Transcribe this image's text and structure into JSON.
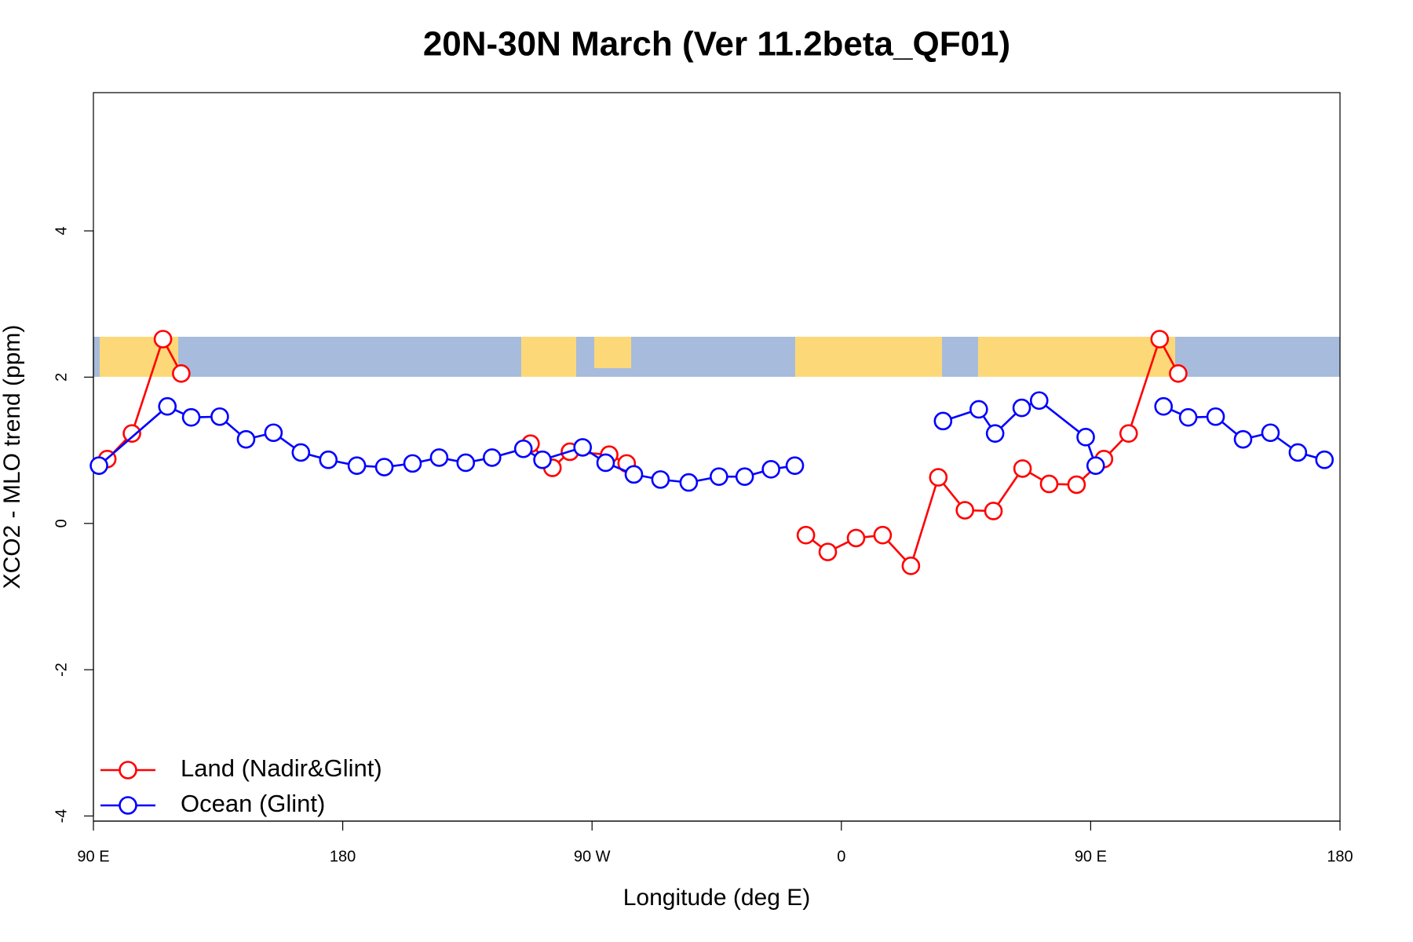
{
  "chart_data": {
    "type": "line",
    "title": "20N-30N March (Ver 11.2beta_QF01)",
    "x_label": "Longitude (deg E)",
    "y_label": "XCO2 - MLO trend (ppm)",
    "xlim": [
      90,
      540
    ],
    "xticks": [
      {
        "value": 90,
        "label": "90 E"
      },
      180,
      {
        "value": 270,
        "label": "90 W"
      },
      {
        "value": 360,
        "label": "0"
      },
      {
        "value": 450,
        "label": "90 E"
      },
      {
        "value": 540,
        "label": "180"
      }
    ],
    "ylim": [
      -4.07,
      5.89
    ],
    "yticks": [
      -4,
      -2,
      0,
      2,
      4
    ],
    "legend": "bottomleft",
    "series": [
      {
        "name": "Land (Nadir&Glint)",
        "color": "#ff0000",
        "x": [
          95,
          103.9,
          115.1,
          121.7,
          null,
          247.8,
          255.7,
          262,
          276.2,
          282.5,
          null,
          347.2,
          355.1,
          365.3,
          374.9,
          385.1,
          395,
          404.6,
          414.9,
          425.4,
          435,
          444.9,
          454.8,
          463.7,
          474.9,
          481.6
        ],
        "values": [
          0.88,
          1.23,
          2.52,
          2.05,
          null,
          1.09,
          0.76,
          0.98,
          0.94,
          0.82,
          null,
          -0.16,
          -0.39,
          -0.2,
          -0.16,
          -0.58,
          0.63,
          0.18,
          0.17,
          0.75,
          0.54,
          0.53,
          0.88,
          1.23,
          2.52,
          2.05
        ]
      },
      {
        "name": "Ocean (Glint)",
        "color": "#0000ff",
        "x": [
          92,
          116.7,
          125.3,
          135.6,
          145.1,
          155,
          164.9,
          174.8,
          185.1,
          195,
          205.2,
          214.8,
          224.4,
          233.9,
          245.2,
          252.1,
          266.6,
          274.9,
          285.1,
          294.7,
          304.9,
          315.8,
          325.1,
          334.6,
          343.2,
          null,
          396.7,
          409.6,
          415.5,
          425.1,
          431.4,
          448.2,
          451.8,
          null,
          476.3,
          485.2,
          495.1,
          505,
          514.9,
          524.8,
          534.4
        ],
        "values": [
          0.79,
          1.6,
          1.45,
          1.46,
          1.15,
          1.24,
          0.97,
          0.87,
          0.79,
          0.77,
          0.82,
          0.9,
          0.83,
          0.9,
          1.02,
          0.87,
          1.04,
          0.83,
          0.67,
          0.6,
          0.56,
          0.64,
          0.64,
          0.74,
          0.79,
          null,
          1.4,
          1.56,
          1.23,
          1.58,
          1.68,
          1.18,
          0.79,
          null,
          1.6,
          1.45,
          1.46,
          1.15,
          1.24,
          0.97,
          0.87
        ]
      }
    ]
  }
}
